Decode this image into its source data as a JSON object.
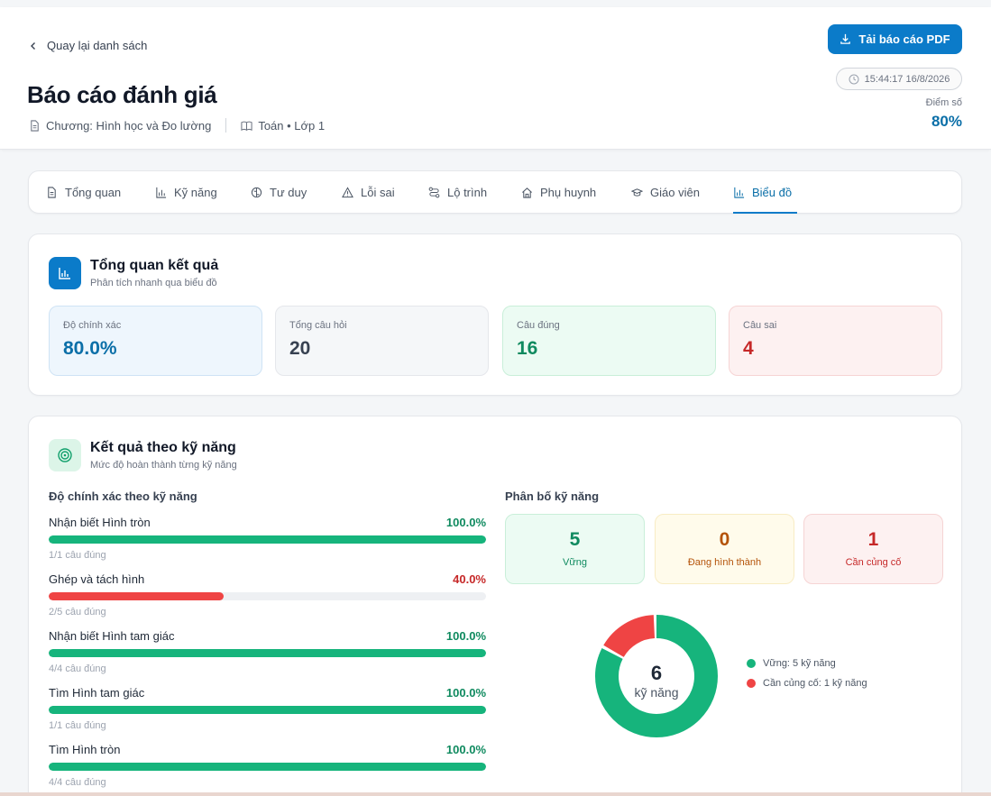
{
  "header": {
    "back_label": "Quay lại danh sách",
    "title": "Báo cáo đánh giá",
    "chapter": "Chương: Hình học và Đo lường",
    "subject": "Toán • Lớp 1",
    "pdf_label": "Tải báo cáo PDF",
    "timestamp": "15:44:17 16/8/2026",
    "score_label": "Điểm số",
    "score_value": "80%"
  },
  "tabs": [
    {
      "label": "Tổng quan",
      "icon": "document-icon"
    },
    {
      "label": "Kỹ năng",
      "icon": "bar-chart-icon"
    },
    {
      "label": "Tư duy",
      "icon": "brain-icon"
    },
    {
      "label": "Lỗi sai",
      "icon": "warning-icon"
    },
    {
      "label": "Lộ trình",
      "icon": "route-icon"
    },
    {
      "label": "Phụ huynh",
      "icon": "home-icon"
    },
    {
      "label": "Giáo viên",
      "icon": "graduation-cap-icon"
    },
    {
      "label": "Biểu đồ",
      "icon": "bar-chart-icon",
      "active": true
    }
  ],
  "overview": {
    "title": "Tổng quan kết quả",
    "subtitle": "Phân tích nhanh qua biểu đồ",
    "stats": [
      {
        "label": "Độ chính xác",
        "value": "80.0%",
        "color": "#0b6fa8",
        "bg": "#eef6fd",
        "border": "#cfe3f5"
      },
      {
        "label": "Tổng câu hỏi",
        "value": "20",
        "color": "#374151",
        "bg": "#f5f7f9",
        "border": "#e5e7eb"
      },
      {
        "label": "Câu đúng",
        "value": "16",
        "color": "#0f8a5f",
        "bg": "#ecfbf3",
        "border": "#c9efd9"
      },
      {
        "label": "Câu sai",
        "value": "4",
        "color": "#c62828",
        "bg": "#fdf1f1",
        "border": "#f6d4d4"
      }
    ]
  },
  "skills": {
    "title": "Kết quả theo kỹ năng",
    "subtitle": "Mức độ hoàn thành từng kỹ năng",
    "accuracy_heading": "Độ chính xác theo kỹ năng",
    "items": [
      {
        "name": "Nhận biết Hình tròn",
        "percent_label": "100.0%",
        "percent": 100,
        "count": "1/1 câu đúng",
        "color": "#16b47c"
      },
      {
        "name": "Ghép và tách hình",
        "percent_label": "40.0%",
        "percent": 40,
        "count": "2/5 câu đúng",
        "color": "#ef4444"
      },
      {
        "name": "Nhận biết Hình tam giác",
        "percent_label": "100.0%",
        "percent": 100,
        "count": "4/4 câu đúng",
        "color": "#16b47c"
      },
      {
        "name": "Tìm Hình tam giác",
        "percent_label": "100.0%",
        "percent": 100,
        "count": "1/1 câu đúng",
        "color": "#16b47c"
      },
      {
        "name": "Tìm Hình tròn",
        "percent_label": "100.0%",
        "percent": 100,
        "count": "4/4 câu đúng",
        "color": "#16b47c"
      }
    ],
    "distribution_heading": "Phân bố kỹ năng",
    "distribution": [
      {
        "value": "5",
        "label": "Vững",
        "color": "#0f8a5f",
        "bg": "#ecfbf3",
        "border": "#c9efd9"
      },
      {
        "value": "0",
        "label": "Đang hình thành",
        "color": "#b45309",
        "bg": "#fffbeb",
        "border": "#f8ecc4"
      },
      {
        "value": "1",
        "label": "Cần củng cố",
        "color": "#c62828",
        "bg": "#fdf1f1",
        "border": "#f6d4d4"
      }
    ],
    "donut": {
      "center_value": "6",
      "center_label": "kỹ năng",
      "segments": [
        {
          "label": "Vững: 5 kỹ năng",
          "value": 5,
          "color": "#16b47c"
        },
        {
          "label": "Cần củng cố: 1 kỹ năng",
          "value": 1,
          "color": "#ef4444"
        }
      ]
    }
  }
}
